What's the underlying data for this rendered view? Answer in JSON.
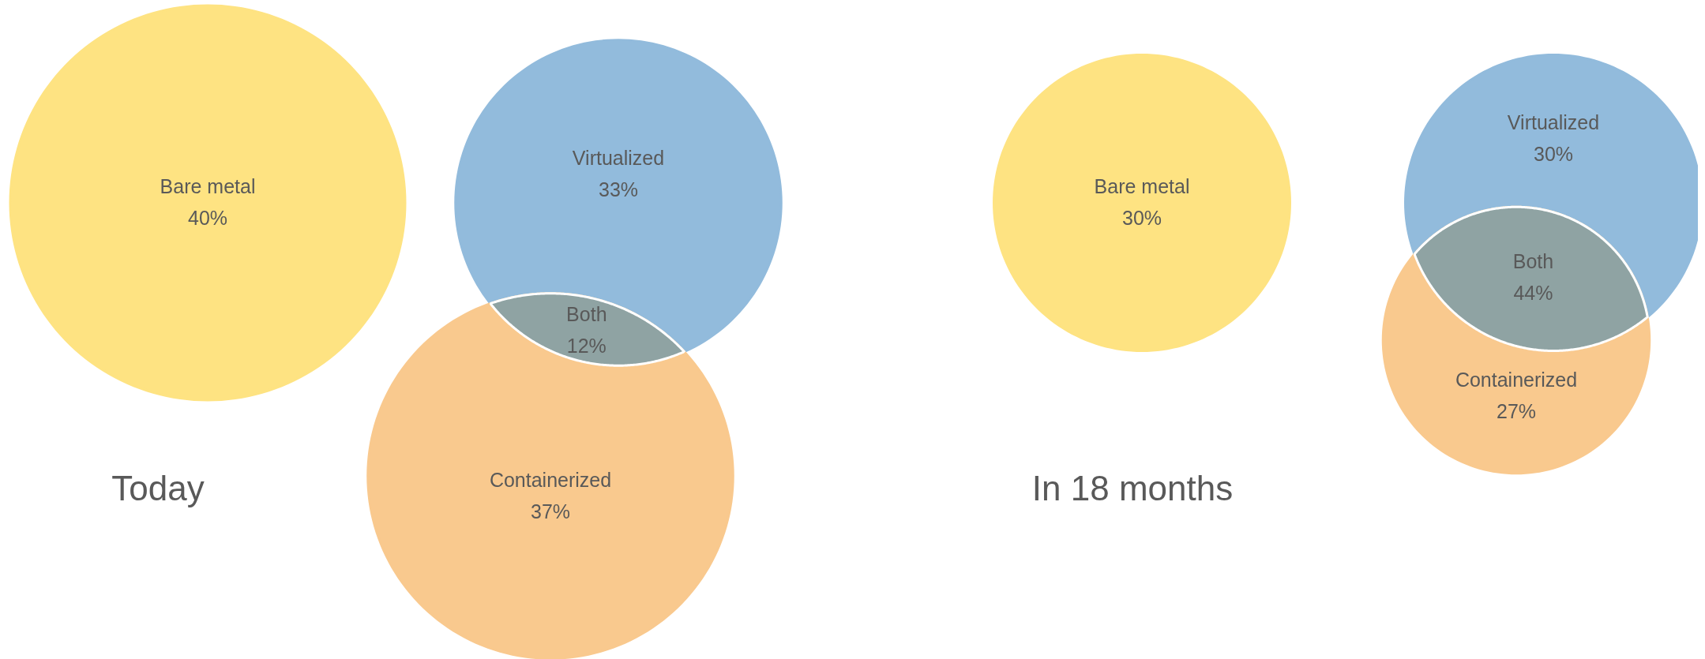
{
  "chart_data": [
    {
      "type": "other",
      "title": "Today",
      "categories": [
        "Bare metal",
        "Virtualized",
        "Containerized",
        "Both"
      ],
      "values": [
        40,
        33,
        37,
        12
      ],
      "value_labels": [
        "40%",
        "33%",
        "37%",
        "12%"
      ],
      "colors": [
        "#fee382",
        "#92bbdc",
        "#f9c98e",
        "#8fa3a3"
      ]
    },
    {
      "type": "other",
      "title": "In 18 months",
      "categories": [
        "Bare metal",
        "Virtualized",
        "Containerized",
        "Both"
      ],
      "values": [
        30,
        30,
        27,
        44
      ],
      "value_labels": [
        "30%",
        "30%",
        "27%",
        "44%"
      ],
      "colors": [
        "#fee382",
        "#92bbdc",
        "#f9c98e",
        "#8fa3a3"
      ]
    }
  ]
}
